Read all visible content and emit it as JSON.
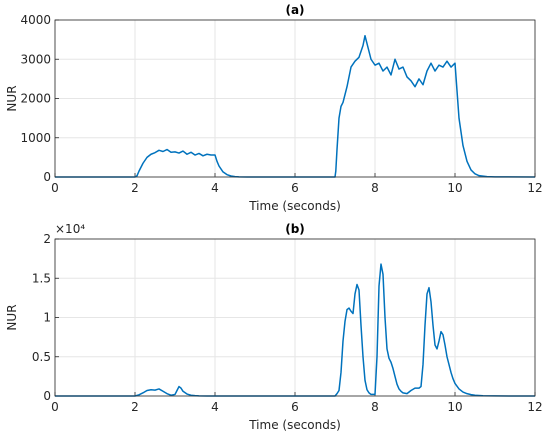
{
  "chart_data": [
    {
      "type": "line",
      "title": "(a)",
      "xlabel": "Time (seconds)",
      "ylabel": "NUR",
      "xlim": [
        0,
        12
      ],
      "ylim": [
        0,
        4000
      ],
      "xticks": [
        "0",
        "2",
        "4",
        "6",
        "8",
        "10",
        "12"
      ],
      "yticks": [
        "0",
        "1000",
        "2000",
        "3000",
        "4000"
      ],
      "yexponent": "",
      "grid": true,
      "color": "#0072bd",
      "series": [
        {
          "x": [
            0,
            2.0,
            2.05,
            2.1,
            2.2,
            2.3,
            2.4,
            2.5,
            2.6,
            2.7,
            2.8,
            2.9,
            3.0,
            3.1,
            3.2,
            3.3,
            3.4,
            3.5,
            3.6,
            3.7,
            3.8,
            3.9,
            4.0,
            4.05,
            4.1,
            4.2,
            4.3,
            4.4,
            4.5,
            4.6,
            4.8,
            5.0,
            7.0,
            7.02,
            7.05,
            7.1,
            7.15,
            7.2,
            7.3,
            7.4,
            7.5,
            7.6,
            7.7,
            7.75,
            7.8,
            7.9,
            8.0,
            8.1,
            8.2,
            8.3,
            8.4,
            8.5,
            8.6,
            8.7,
            8.8,
            8.9,
            9.0,
            9.1,
            9.2,
            9.3,
            9.4,
            9.5,
            9.6,
            9.7,
            9.8,
            9.9,
            10.0,
            10.05,
            10.1,
            10.2,
            10.3,
            10.4,
            10.5,
            10.6,
            10.8,
            11.0,
            12.0
          ],
          "y": [
            0,
            0,
            30,
            150,
            350,
            500,
            580,
            620,
            680,
            650,
            700,
            630,
            640,
            610,
            660,
            580,
            630,
            560,
            600,
            540,
            580,
            560,
            560,
            400,
            280,
            130,
            60,
            25,
            10,
            4,
            1,
            0,
            0,
            150,
            700,
            1500,
            1800,
            1900,
            2300,
            2800,
            2950,
            3050,
            3350,
            3600,
            3400,
            3000,
            2850,
            2900,
            2700,
            2800,
            2600,
            3000,
            2750,
            2800,
            2550,
            2450,
            2300,
            2500,
            2350,
            2700,
            2900,
            2700,
            2850,
            2800,
            2950,
            2800,
            2900,
            2200,
            1500,
            800,
            400,
            180,
            80,
            35,
            10,
            3,
            0
          ]
        }
      ]
    },
    {
      "type": "line",
      "title": "(b)",
      "xlabel": "Time (seconds)",
      "ylabel": "NUR",
      "xlim": [
        0,
        12
      ],
      "ylim": [
        0,
        20000
      ],
      "xticks": [
        "0",
        "2",
        "4",
        "6",
        "8",
        "10",
        "12"
      ],
      "yticks": [
        "0",
        "0.5",
        "1",
        "1.5",
        "2"
      ],
      "yexponent": "×10⁴",
      "grid": true,
      "color": "#0072bd",
      "series": [
        {
          "x": [
            0,
            2.0,
            2.1,
            2.2,
            2.3,
            2.4,
            2.5,
            2.6,
            2.7,
            2.8,
            2.9,
            3.0,
            3.05,
            3.1,
            3.15,
            3.2,
            3.3,
            3.4,
            3.5,
            3.6,
            3.8,
            4.0,
            7.0,
            7.05,
            7.1,
            7.15,
            7.2,
            7.25,
            7.3,
            7.35,
            7.4,
            7.45,
            7.5,
            7.55,
            7.6,
            7.65,
            7.7,
            7.75,
            7.8,
            7.85,
            7.9,
            7.95,
            8.0,
            8.05,
            8.1,
            8.15,
            8.2,
            8.25,
            8.3,
            8.35,
            8.4,
            8.45,
            8.5,
            8.55,
            8.6,
            8.65,
            8.7,
            8.8,
            8.9,
            9.0,
            9.1,
            9.15,
            9.2,
            9.25,
            9.3,
            9.35,
            9.4,
            9.45,
            9.5,
            9.55,
            9.6,
            9.65,
            9.7,
            9.75,
            9.8,
            9.85,
            9.9,
            9.95,
            10.0,
            10.1,
            10.2,
            10.3,
            10.4,
            10.5,
            10.7,
            11.0,
            12.0
          ],
          "y": [
            0,
            0,
            150,
            400,
            700,
            800,
            750,
            900,
            600,
            300,
            100,
            200,
            700,
            1200,
            1000,
            600,
            250,
            100,
            50,
            20,
            5,
            0,
            0,
            300,
            700,
            3000,
            7000,
            9500,
            11000,
            11200,
            10800,
            10500,
            13000,
            14200,
            13500,
            9000,
            5000,
            2000,
            800,
            400,
            200,
            200,
            200,
            5000,
            14000,
            16800,
            15500,
            10000,
            6000,
            4800,
            4300,
            3500,
            2500,
            1500,
            900,
            600,
            400,
            300,
            700,
            1000,
            1000,
            1200,
            4000,
            9000,
            13000,
            13800,
            12000,
            9000,
            6500,
            6000,
            7000,
            8200,
            7800,
            6500,
            5000,
            4000,
            3000,
            2200,
            1600,
            900,
            500,
            300,
            180,
            100,
            40,
            10,
            0
          ]
        }
      ]
    }
  ]
}
